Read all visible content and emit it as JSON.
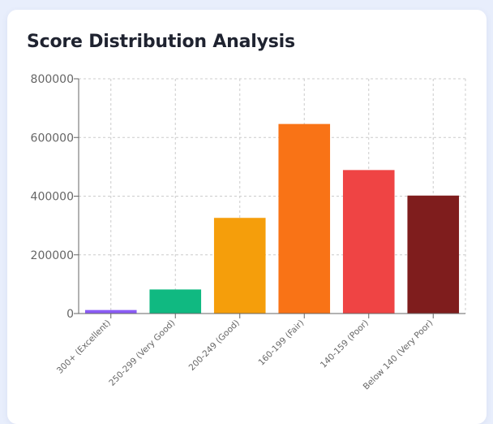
{
  "page": {
    "title": "Score Distribution Analysis"
  },
  "chart_data": {
    "type": "bar",
    "title": "Score Distribution Analysis",
    "xlabel": "",
    "ylabel": "",
    "categories": [
      "300+ (Excellent)",
      "250-299 (Very Good)",
      "200-249 (Good)",
      "160-199 (Fair)",
      "140-159 (Poor)",
      "Below 140 (Very Poor)"
    ],
    "values": [
      12000,
      82000,
      326000,
      646000,
      489000,
      402000
    ],
    "colors": [
      "#8b5cf6",
      "#10b981",
      "#f59e0b",
      "#f97316",
      "#ef4444",
      "#7f1d1d"
    ],
    "ylim": [
      0,
      800000
    ],
    "yticks": [
      0,
      200000,
      400000,
      600000,
      800000
    ],
    "ytick_labels": [
      "0",
      "200000",
      "400000",
      "600000",
      "800000"
    ],
    "grid": true,
    "legend": "none"
  }
}
